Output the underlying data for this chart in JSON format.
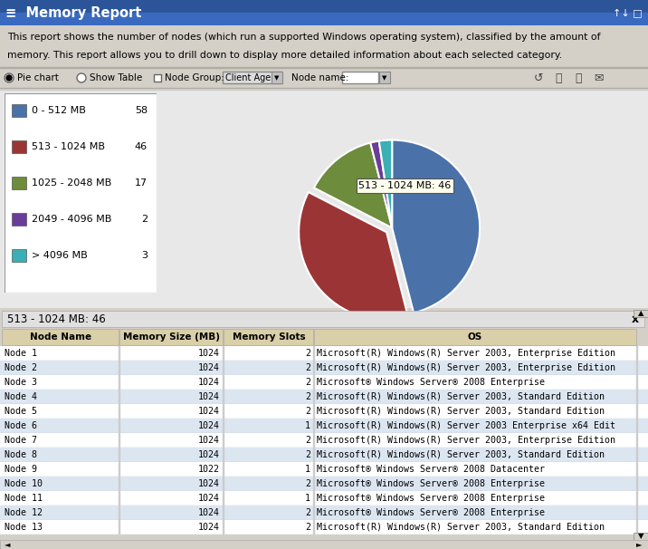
{
  "title": "Memory Report",
  "description_line1": "This report shows the number of nodes (which run a supported Windows operating system), classified by the amount of",
  "description_line2": "memory. This report allows you to drill down to display more detailed information about each selected category.",
  "categories": [
    "0 - 512 MB",
    "513 - 1024 MB",
    "1025 - 2048 MB",
    "2049 - 4096 MB",
    "> 4096 MB"
  ],
  "values": [
    58,
    46,
    17,
    2,
    3
  ],
  "colors": [
    "#4a72a8",
    "#9b3535",
    "#6d8c3c",
    "#6a3d9a",
    "#3aafb5"
  ],
  "explode": [
    0,
    0.08,
    0,
    0,
    0
  ],
  "tooltip_label": "513 - 1024 MB: 46",
  "header_bg_top": "#3a5fa0",
  "header_bg_bot": "#1a3570",
  "table_title": "513 - 1024 MB: 46",
  "table_headers": [
    "Node Name",
    "Memory Size (MB)",
    "Memory Slots",
    "OS"
  ],
  "table_header_bg": "#d9cfa8",
  "table_alt_bg": [
    "#ffffff",
    "#dce6f1"
  ],
  "table_rows": [
    [
      "Node 1",
      "1024",
      "2",
      "Microsoft(R) Windows(R) Server 2003, Enterprise Edition"
    ],
    [
      "Node 2",
      "1024",
      "2",
      "Microsoft(R) Windows(R) Server 2003, Enterprise Edition"
    ],
    [
      "Node 3",
      "1024",
      "2",
      "Microsoft® Windows Server® 2008 Enterprise"
    ],
    [
      "Node 4",
      "1024",
      "2",
      "Microsoft(R) Windows(R) Server 2003, Standard Edition"
    ],
    [
      "Node 5",
      "1024",
      "2",
      "Microsoft(R) Windows(R) Server 2003, Standard Edition"
    ],
    [
      "Node 6",
      "1024",
      "1",
      "Microsoft(R) Windows(R) Server 2003 Enterprise x64 Edit"
    ],
    [
      "Node 7",
      "1024",
      "2",
      "Microsoft(R) Windows(R) Server 2003, Enterprise Edition"
    ],
    [
      "Node 8",
      "1024",
      "2",
      "Microsoft(R) Windows(R) Server 2003, Standard Edition"
    ],
    [
      "Node 9",
      "1022",
      "1",
      "Microsoft® Windows Server® 2008 Datacenter"
    ],
    [
      "Node 10",
      "1024",
      "2",
      "Microsoft® Windows Server® 2008 Enterprise"
    ],
    [
      "Node 11",
      "1024",
      "1",
      "Microsoft® Windows Server® 2008 Enterprise"
    ],
    [
      "Node 12",
      "1024",
      "2",
      "Microsoft® Windows Server® 2008 Enterprise"
    ],
    [
      "Node 13",
      "1024",
      "2",
      "Microsoft(R) Windows(R) Server 2003, Standard Edition"
    ]
  ]
}
